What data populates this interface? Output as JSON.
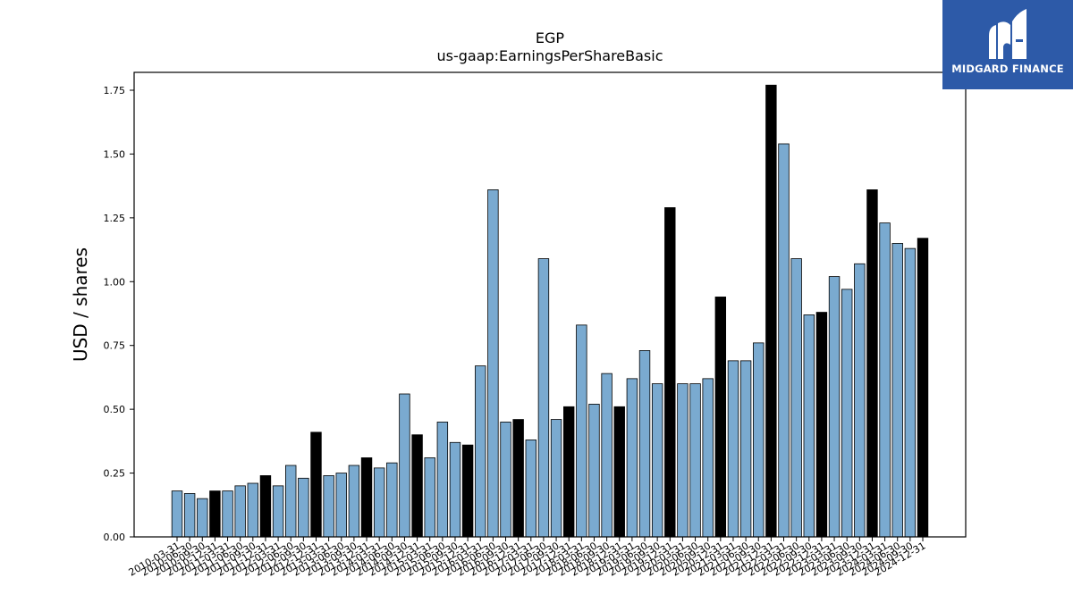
{
  "brand": {
    "name": "MIDGARD FINANCE",
    "logo_icon": "midgard-logo-icon",
    "background": "#2d5aa8"
  },
  "colors": {
    "quarter_bar": "#7aaad0",
    "year_end_bar": "#000000"
  },
  "chart_data": {
    "type": "bar",
    "title": "EGP",
    "subtitle": "us-gaap:EarningsPerShareBasic",
    "xlabel": "",
    "ylabel": "USD / shares",
    "ylim": [
      0,
      1.82
    ],
    "yticks": [
      0.0,
      0.25,
      0.5,
      0.75,
      1.0,
      1.25,
      1.5,
      1.75
    ],
    "ytick_labels": [
      "0.00",
      "0.25",
      "0.50",
      "0.75",
      "1.00",
      "1.25",
      "1.50",
      "1.75"
    ],
    "grid": false,
    "legend": "none",
    "categories": [
      "2010-03-31",
      "2010-06-30",
      "2010-09-30",
      "2010-12-31",
      "2011-03-31",
      "2011-06-30",
      "2011-09-30",
      "2011-12-31",
      "2012-03-31",
      "2012-06-30",
      "2012-09-30",
      "2012-12-31",
      "2013-03-31",
      "2013-06-30",
      "2013-09-30",
      "2013-12-31",
      "2014-03-31",
      "2014-06-30",
      "2014-09-30",
      "2014-12-31",
      "2015-03-31",
      "2015-06-30",
      "2015-09-30",
      "2015-12-31",
      "2016-03-31",
      "2016-06-30",
      "2016-09-30",
      "2016-12-31",
      "2017-03-31",
      "2017-06-30",
      "2017-09-30",
      "2017-12-31",
      "2018-03-31",
      "2018-06-30",
      "2018-09-30",
      "2018-12-31",
      "2019-03-31",
      "2019-06-30",
      "2019-09-30",
      "2019-12-31",
      "2020-03-31",
      "2020-06-30",
      "2020-09-30",
      "2020-12-31",
      "2021-03-31",
      "2021-06-30",
      "2021-09-30",
      "2021-12-31",
      "2022-03-31",
      "2022-06-30",
      "2022-09-30",
      "2022-12-31",
      "2023-03-31",
      "2023-06-30",
      "2023-09-30",
      "2023-12-31",
      "2024-03-31",
      "2024-06-30",
      "2024-09-30",
      "2024-12-31"
    ],
    "values": [
      0.18,
      0.17,
      0.15,
      0.18,
      0.18,
      0.2,
      0.21,
      0.24,
      0.2,
      0.28,
      0.23,
      0.41,
      0.24,
      0.25,
      0.28,
      0.31,
      0.27,
      0.29,
      0.56,
      0.4,
      0.31,
      0.45,
      0.37,
      0.36,
      0.67,
      1.36,
      0.45,
      0.46,
      0.38,
      1.09,
      0.46,
      0.51,
      0.83,
      0.52,
      0.64,
      0.51,
      0.62,
      0.73,
      0.6,
      1.29,
      0.6,
      0.6,
      0.62,
      0.94,
      0.69,
      0.69,
      0.76,
      1.77,
      1.54,
      1.09,
      0.87,
      0.88,
      1.02,
      0.97,
      1.07,
      1.36,
      1.23,
      1.15,
      1.13,
      1.17
    ]
  }
}
